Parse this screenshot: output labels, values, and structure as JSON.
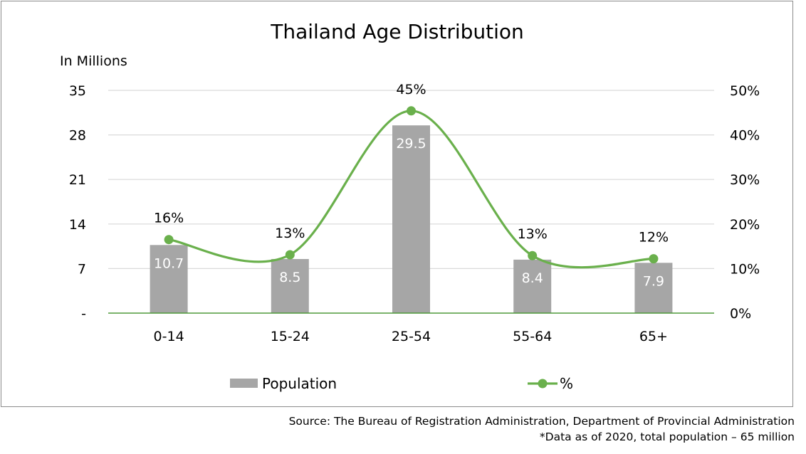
{
  "chart_data": {
    "type": "bar",
    "title": "Thailand Age Distribution",
    "ylabel": "In Millions",
    "xlabel": "",
    "categories": [
      "0-14",
      "15-24",
      "25-54",
      "55-64",
      "65+"
    ],
    "series": [
      {
        "name": "Population",
        "kind": "bar",
        "axis": "left",
        "values": [
          10.7,
          8.5,
          29.5,
          8.4,
          7.9
        ],
        "labels": [
          "10.7",
          "8.5",
          "29.5",
          "8.4",
          "7.9"
        ]
      },
      {
        "name": "%",
        "kind": "line",
        "axis": "right",
        "values": [
          16.5,
          13.1,
          45.4,
          12.9,
          12.2
        ],
        "labels": [
          "16%",
          "13%",
          "45%",
          "13%",
          "12%"
        ]
      }
    ],
    "ylim": [
      0,
      35
    ],
    "y_ticks": [
      "-",
      "7",
      "14",
      "21",
      "28",
      "35"
    ],
    "y2lim": [
      0,
      50
    ],
    "y2_ticks": [
      "0%",
      "10%",
      "20%",
      "30%",
      "40%",
      "50%"
    ],
    "grid": true,
    "legend_position": "bottom",
    "colors": {
      "bar": "#a6a6a6",
      "line": "#6ab04c",
      "bar_label": "#ffffff",
      "grid": "#d9d9d9",
      "axis": "#4f9a3a"
    }
  },
  "footer": {
    "source": "Source: The Bureau of Registration Administration, Department of Provincial Administration",
    "note": "*Data as of 2020, total population – 65 million"
  }
}
